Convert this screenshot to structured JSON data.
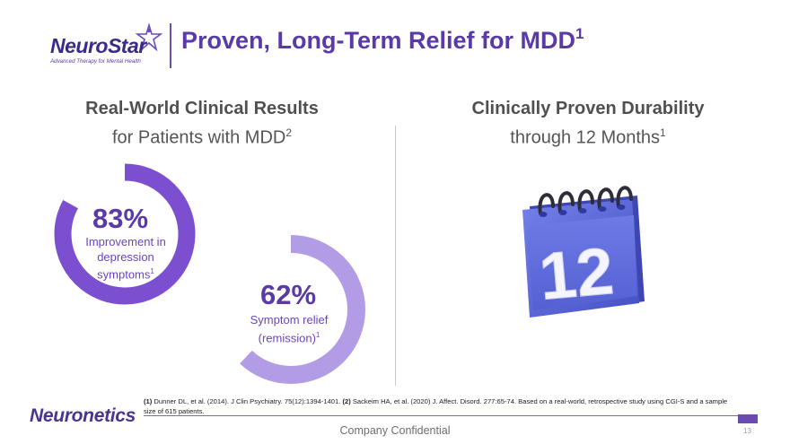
{
  "header": {
    "logo_word": "NeuroStar",
    "logo_tagline": "Advanced Therapy for Mental Health",
    "title": "Proven, Long-Term Relief for MDD",
    "title_sup": "1"
  },
  "left_section": {
    "heading_bold": "Real-World Clinical Results",
    "heading_sub": "for Patients with MDD",
    "heading_sup": "2",
    "stats": [
      {
        "value": "83%",
        "label_lines": [
          "Improvement in",
          "depression",
          "symptoms"
        ],
        "label_sup": "1",
        "ring_fill_percent": 83,
        "color": "#7b4fd0"
      },
      {
        "value": "62%",
        "label_lines": [
          "Symptom relief",
          "(remission)"
        ],
        "label_sup": "1",
        "ring_fill_percent": 62,
        "color": "#b39ce6"
      }
    ]
  },
  "right_section": {
    "heading_bold": "Clinically Proven Durability",
    "heading_sub": "through 12 Months",
    "heading_sup": "1",
    "calendar_number": "12"
  },
  "footer": {
    "company_logo": "Neuronetics",
    "ref1_num": "(1)",
    "ref1": " Dunner DL, et al. (2014). J Clin Psychiatry. 75(12):1394-1401. ",
    "ref2_num": "(2)",
    "ref2": " Sackeim HA, et al. (2020) J. Affect. Disord. 277:65-74. Based on a real-world, retrospective study using CGI-S and a sample size of 615 patients.",
    "confidential": "Company Confidential",
    "page_number": "13"
  },
  "colors": {
    "brand_purple": "#5a39a8",
    "ring_dark": "#7b4fd0",
    "ring_light": "#b39ce6",
    "calendar_blue": "#5b67d8"
  }
}
